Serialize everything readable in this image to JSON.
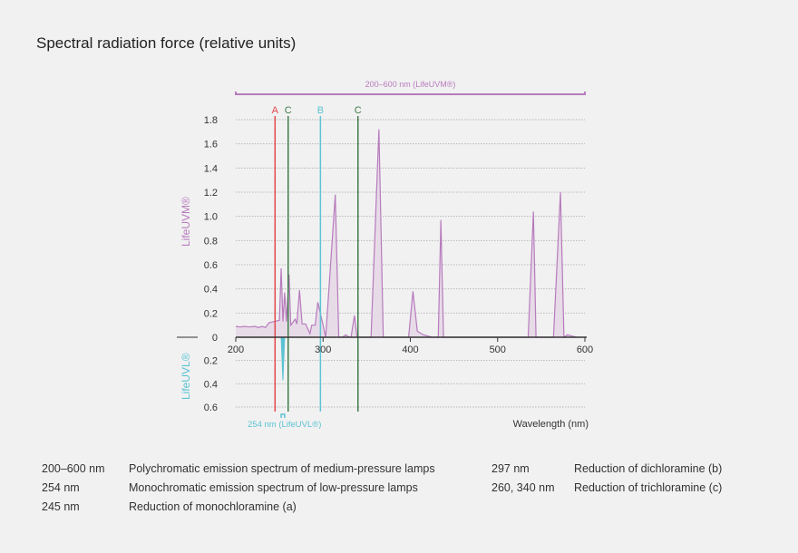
{
  "title": "Spectral radiation force (relative units)",
  "chart_data": {
    "type": "area",
    "title": "Spectral radiation force (relative units)",
    "xlabel": "Wavelength (nm)",
    "ylabel_upper": "LifeUVM®",
    "ylabel_lower": "LifeUVL®",
    "xlim": [
      200,
      600
    ],
    "ylim_upper": [
      0,
      1.8
    ],
    "ylim_lower": [
      0,
      0.6
    ],
    "x_ticks": [
      "200",
      "300",
      "400",
      "500",
      "600"
    ],
    "x_tick_values": [
      200,
      300,
      400,
      500,
      600
    ],
    "y_ticks_upper": [
      "0",
      "0.2",
      "0.4",
      "0.6",
      "0.8",
      "1.0",
      "1.2",
      "1.4",
      "1.6",
      "1.8"
    ],
    "y_tick_values_upper": [
      0,
      0.2,
      0.4,
      0.6,
      0.8,
      1.0,
      1.2,
      1.4,
      1.6,
      1.8
    ],
    "y_ticks_lower": [
      "0.2",
      "0.4",
      "0.6"
    ],
    "y_tick_values_lower": [
      0.2,
      0.4,
      0.6
    ],
    "grid": true,
    "range_bar": {
      "label": "200–600 nm (LifeUVM®)",
      "from": 200,
      "to": 600,
      "color": "#b77bbd"
    },
    "uvl_label": "254 nm (LifeUVL®)",
    "markers": [
      {
        "label": "A",
        "x": 245,
        "color": "#e0474c"
      },
      {
        "label": "C",
        "x": 260,
        "color": "#3f7d4a"
      },
      {
        "label": "B",
        "x": 297,
        "color": "#5bc3d3"
      },
      {
        "label": "C",
        "x": 340,
        "color": "#3f7d4a"
      }
    ],
    "series": [
      {
        "name": "LifeUVM®",
        "color": "#b77bbd",
        "fill": "#e7dbe8",
        "x": [
          200,
          205,
          210,
          215,
          222,
          226,
          230,
          234,
          238,
          244,
          250,
          252,
          254,
          256,
          258,
          261,
          263,
          268,
          270,
          273,
          276,
          280,
          285,
          287,
          291,
          294,
          300,
          303,
          314,
          318,
          322,
          326,
          330,
          332,
          336,
          339,
          355,
          364,
          369,
          398,
          403,
          408,
          415,
          425,
          432,
          435,
          438,
          535,
          541,
          544,
          564,
          572,
          576,
          580,
          585,
          591
        ],
        "y": [
          0.09,
          0.085,
          0.09,
          0.085,
          0.09,
          0.08,
          0.09,
          0.08,
          0.12,
          0.13,
          0.14,
          0.57,
          0.13,
          0.37,
          0.13,
          0.52,
          0.1,
          0.15,
          0.11,
          0.39,
          0.11,
          0.11,
          0.03,
          0.1,
          0.1,
          0.29,
          0.1,
          0.0,
          1.18,
          0.0,
          0.0,
          0.02,
          0.0,
          0.0,
          0.18,
          0.0,
          0.0,
          1.72,
          0.0,
          0.0,
          0.38,
          0.05,
          0.02,
          0.0,
          0.0,
          0.97,
          0.0,
          0.0,
          1.04,
          0.0,
          0.0,
          1.2,
          0.0,
          0.02,
          0.01,
          0.0
        ]
      },
      {
        "name": "LifeUVL®",
        "color": "#5bc3d3",
        "x": [
          252,
          254,
          256
        ],
        "y": [
          0,
          0.37,
          0
        ]
      }
    ]
  },
  "legend": [
    {
      "key": "200–600 nm",
      "text": "Polychromatic emission spectrum of medium-pressure lamps"
    },
    {
      "key": "254 nm",
      "text": "Monochromatic emission spectrum of low-pressure lamps"
    },
    {
      "key": "245 nm",
      "text": "Reduction of monochloramine  (a)"
    },
    {
      "key": "297 nm",
      "text": "Reduction of dichloramine (b)"
    },
    {
      "key": "260, 340 nm",
      "text": "Reduction of trichloramine (c)"
    }
  ]
}
